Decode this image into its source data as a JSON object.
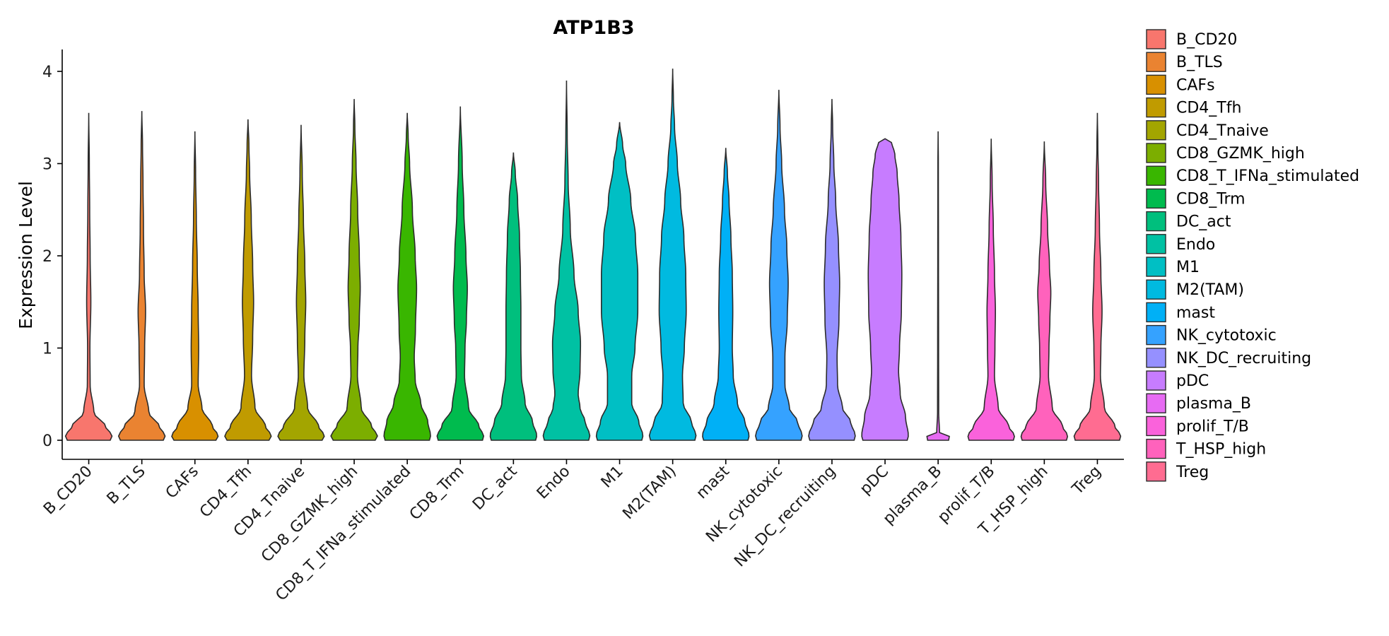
{
  "chart_data": {
    "type": "violin",
    "title": "ATP1B3",
    "xlabel": "",
    "ylabel": "Expression Level",
    "ylim": [
      0,
      4.2
    ],
    "yticks": [
      0,
      1,
      2,
      3,
      4
    ],
    "legend_position": "right",
    "categories": [
      "B_CD20",
      "B_TLS",
      "CAFs",
      "CD4_Tfh",
      "CD4_Tnaive",
      "CD8_GZMK_high",
      "CD8_T_IFNa_stimulated",
      "CD8_Trm",
      "DC_act",
      "Endo",
      "M1",
      "M2(TAM)",
      "mast",
      "NK_cytotoxic",
      "NK_DC_recruiting",
      "pDC",
      "plasma_B",
      "prolif_T/B",
      "T_HSP_high",
      "Treg"
    ],
    "colors": [
      "#F8766D",
      "#EA8331",
      "#D89000",
      "#C09B00",
      "#A3A500",
      "#7CAE00",
      "#39B600",
      "#00BB4E",
      "#00BF7D",
      "#00C1A3",
      "#00BFC4",
      "#00BAE0",
      "#00B0F6",
      "#35A2FF",
      "#9590FF",
      "#C77CFF",
      "#E76BF3",
      "#FA62DB",
      "#FF62BC",
      "#FF6C91"
    ],
    "series": [
      {
        "name": "B_CD20",
        "max": 3.55,
        "profile": [
          [
            0,
            0.92
          ],
          [
            0.05,
            1
          ],
          [
            0.15,
            0.72
          ],
          [
            0.3,
            0.22
          ],
          [
            0.6,
            0.06
          ],
          [
            1.0,
            0.05
          ],
          [
            1.5,
            0.09
          ],
          [
            2.0,
            0.06
          ],
          [
            2.5,
            0.04
          ],
          [
            3.0,
            0.025
          ],
          [
            3.55,
            0
          ]
        ]
      },
      {
        "name": "B_TLS",
        "max": 3.57,
        "profile": [
          [
            0,
            0.92
          ],
          [
            0.05,
            1
          ],
          [
            0.15,
            0.75
          ],
          [
            0.3,
            0.3
          ],
          [
            0.6,
            0.1
          ],
          [
            1.0,
            0.12
          ],
          [
            1.4,
            0.16
          ],
          [
            1.8,
            0.1
          ],
          [
            2.3,
            0.07
          ],
          [
            2.8,
            0.05
          ],
          [
            3.2,
            0.03
          ],
          [
            3.57,
            0
          ]
        ]
      },
      {
        "name": "CAFs",
        "max": 3.35,
        "profile": [
          [
            0,
            0.9
          ],
          [
            0.05,
            1
          ],
          [
            0.15,
            0.75
          ],
          [
            0.35,
            0.3
          ],
          [
            0.6,
            0.14
          ],
          [
            1.0,
            0.16
          ],
          [
            1.4,
            0.14
          ],
          [
            1.9,
            0.1
          ],
          [
            2.4,
            0.06
          ],
          [
            2.9,
            0.03
          ],
          [
            3.35,
            0
          ]
        ]
      },
      {
        "name": "CD4_Tfh",
        "max": 3.48,
        "profile": [
          [
            0,
            0.9
          ],
          [
            0.05,
            1
          ],
          [
            0.15,
            0.75
          ],
          [
            0.35,
            0.3
          ],
          [
            0.7,
            0.15
          ],
          [
            1.1,
            0.2
          ],
          [
            1.5,
            0.24
          ],
          [
            1.9,
            0.2
          ],
          [
            2.4,
            0.14
          ],
          [
            2.9,
            0.07
          ],
          [
            3.2,
            0.04
          ],
          [
            3.48,
            0
          ]
        ]
      },
      {
        "name": "CD4_Tnaive",
        "max": 3.42,
        "profile": [
          [
            0,
            0.9
          ],
          [
            0.05,
            1
          ],
          [
            0.15,
            0.75
          ],
          [
            0.35,
            0.28
          ],
          [
            0.7,
            0.12
          ],
          [
            1.1,
            0.16
          ],
          [
            1.5,
            0.2
          ],
          [
            1.9,
            0.16
          ],
          [
            2.4,
            0.1
          ],
          [
            2.9,
            0.05
          ],
          [
            3.42,
            0
          ]
        ]
      },
      {
        "name": "CD8_GZMK_high",
        "max": 3.7,
        "profile": [
          [
            0,
            0.9
          ],
          [
            0.05,
            1
          ],
          [
            0.15,
            0.75
          ],
          [
            0.35,
            0.3
          ],
          [
            0.7,
            0.14
          ],
          [
            1.0,
            0.16
          ],
          [
            1.3,
            0.22
          ],
          [
            1.65,
            0.26
          ],
          [
            2.0,
            0.22
          ],
          [
            2.5,
            0.15
          ],
          [
            3.0,
            0.08
          ],
          [
            3.4,
            0.03
          ],
          [
            3.7,
            0
          ]
        ]
      },
      {
        "name": "CD8_T_IFNa_stimulated",
        "max": 3.55,
        "profile": [
          [
            0,
            0.95
          ],
          [
            0.05,
            1
          ],
          [
            0.2,
            0.88
          ],
          [
            0.4,
            0.58
          ],
          [
            0.65,
            0.34
          ],
          [
            0.9,
            0.3
          ],
          [
            1.2,
            0.35
          ],
          [
            1.65,
            0.4
          ],
          [
            2.0,
            0.34
          ],
          [
            2.5,
            0.22
          ],
          [
            3.0,
            0.1
          ],
          [
            3.3,
            0.04
          ],
          [
            3.55,
            0
          ]
        ]
      },
      {
        "name": "CD8_Trm",
        "max": 3.62,
        "profile": [
          [
            0,
            0.95
          ],
          [
            0.05,
            1
          ],
          [
            0.15,
            0.8
          ],
          [
            0.35,
            0.35
          ],
          [
            0.7,
            0.18
          ],
          [
            1.0,
            0.2
          ],
          [
            1.3,
            0.26
          ],
          [
            1.65,
            0.3
          ],
          [
            2.0,
            0.24
          ],
          [
            2.5,
            0.15
          ],
          [
            3.0,
            0.08
          ],
          [
            3.62,
            0
          ]
        ]
      },
      {
        "name": "DC_act",
        "max": 3.12,
        "profile": [
          [
            0,
            0.95
          ],
          [
            0.05,
            1
          ],
          [
            0.2,
            0.82
          ],
          [
            0.4,
            0.5
          ],
          [
            0.7,
            0.34
          ],
          [
            1.0,
            0.32
          ],
          [
            1.4,
            0.32
          ],
          [
            1.8,
            0.3
          ],
          [
            2.2,
            0.26
          ],
          [
            2.6,
            0.18
          ],
          [
            2.9,
            0.08
          ],
          [
            3.12,
            0
          ]
        ]
      },
      {
        "name": "Endo",
        "max": 3.9,
        "profile": [
          [
            0,
            0.95
          ],
          [
            0.05,
            1
          ],
          [
            0.2,
            0.8
          ],
          [
            0.35,
            0.58
          ],
          [
            0.5,
            0.5
          ],
          [
            0.75,
            0.58
          ],
          [
            1.05,
            0.6
          ],
          [
            1.4,
            0.5
          ],
          [
            1.8,
            0.32
          ],
          [
            2.3,
            0.16
          ],
          [
            2.8,
            0.07
          ],
          [
            3.3,
            0.03
          ],
          [
            3.9,
            0
          ]
        ]
      },
      {
        "name": "M1",
        "max": 3.45,
        "profile": [
          [
            0,
            0.95
          ],
          [
            0.05,
            1
          ],
          [
            0.2,
            0.82
          ],
          [
            0.4,
            0.52
          ],
          [
            0.7,
            0.52
          ],
          [
            1.0,
            0.66
          ],
          [
            1.4,
            0.78
          ],
          [
            1.8,
            0.78
          ],
          [
            2.2,
            0.68
          ],
          [
            2.6,
            0.48
          ],
          [
            3.0,
            0.26
          ],
          [
            3.2,
            0.13
          ],
          [
            3.45,
            0
          ]
        ]
      },
      {
        "name": "M2(TAM)",
        "max": 4.03,
        "profile": [
          [
            0,
            0.95
          ],
          [
            0.05,
            1
          ],
          [
            0.2,
            0.8
          ],
          [
            0.4,
            0.45
          ],
          [
            0.7,
            0.42
          ],
          [
            1.0,
            0.5
          ],
          [
            1.4,
            0.58
          ],
          [
            1.8,
            0.56
          ],
          [
            2.2,
            0.48
          ],
          [
            2.6,
            0.34
          ],
          [
            3.0,
            0.2
          ],
          [
            3.4,
            0.08
          ],
          [
            3.7,
            0.03
          ],
          [
            4.03,
            0
          ]
        ]
      },
      {
        "name": "mast",
        "max": 3.17,
        "profile": [
          [
            0,
            0.95
          ],
          [
            0.05,
            1
          ],
          [
            0.2,
            0.82
          ],
          [
            0.4,
            0.5
          ],
          [
            0.7,
            0.32
          ],
          [
            1.0,
            0.28
          ],
          [
            1.4,
            0.3
          ],
          [
            1.8,
            0.28
          ],
          [
            2.2,
            0.22
          ],
          [
            2.6,
            0.14
          ],
          [
            2.9,
            0.07
          ],
          [
            3.17,
            0
          ]
        ]
      },
      {
        "name": "NK_cytotoxic",
        "max": 3.8,
        "profile": [
          [
            0,
            0.95
          ],
          [
            0.05,
            1
          ],
          [
            0.2,
            0.8
          ],
          [
            0.35,
            0.45
          ],
          [
            0.6,
            0.26
          ],
          [
            0.9,
            0.26
          ],
          [
            1.3,
            0.36
          ],
          [
            1.7,
            0.4
          ],
          [
            2.1,
            0.34
          ],
          [
            2.5,
            0.24
          ],
          [
            3.0,
            0.12
          ],
          [
            3.4,
            0.05
          ],
          [
            3.8,
            0
          ]
        ]
      },
      {
        "name": "NK_DC_recruiting",
        "max": 3.7,
        "profile": [
          [
            0,
            0.95
          ],
          [
            0.05,
            1
          ],
          [
            0.2,
            0.8
          ],
          [
            0.35,
            0.45
          ],
          [
            0.6,
            0.24
          ],
          [
            0.9,
            0.22
          ],
          [
            1.3,
            0.3
          ],
          [
            1.7,
            0.33
          ],
          [
            2.1,
            0.28
          ],
          [
            2.6,
            0.16
          ],
          [
            3.0,
            0.08
          ],
          [
            3.4,
            0.03
          ],
          [
            3.7,
            0
          ]
        ]
      },
      {
        "name": "pDC",
        "max": 3.27,
        "profile": [
          [
            0,
            0.95
          ],
          [
            0.05,
            1
          ],
          [
            0.25,
            0.88
          ],
          [
            0.5,
            0.65
          ],
          [
            0.75,
            0.58
          ],
          [
            1.0,
            0.62
          ],
          [
            1.4,
            0.7
          ],
          [
            1.8,
            0.72
          ],
          [
            2.2,
            0.68
          ],
          [
            2.6,
            0.6
          ],
          [
            2.9,
            0.52
          ],
          [
            3.1,
            0.42
          ],
          [
            3.22,
            0.3
          ],
          [
            3.27,
            0
          ]
        ]
      },
      {
        "name": "plasma_B",
        "max": 3.35,
        "profile": [
          [
            0,
            0.45
          ],
          [
            0.03,
            0.55
          ],
          [
            0.08,
            0.06
          ],
          [
            0.3,
            0.025
          ],
          [
            1.0,
            0.02
          ],
          [
            2.0,
            0.015
          ],
          [
            3.0,
            0.01
          ],
          [
            3.35,
            0
          ]
        ]
      },
      {
        "name": "prolif_T/B",
        "max": 3.27,
        "profile": [
          [
            0,
            0.95
          ],
          [
            0.05,
            1
          ],
          [
            0.15,
            0.75
          ],
          [
            0.35,
            0.3
          ],
          [
            0.7,
            0.14
          ],
          [
            1.0,
            0.16
          ],
          [
            1.4,
            0.18
          ],
          [
            1.8,
            0.14
          ],
          [
            2.3,
            0.09
          ],
          [
            2.8,
            0.04
          ],
          [
            3.27,
            0
          ]
        ]
      },
      {
        "name": "T_HSP_high",
        "max": 3.24,
        "profile": [
          [
            0,
            0.95
          ],
          [
            0.05,
            1
          ],
          [
            0.15,
            0.78
          ],
          [
            0.35,
            0.34
          ],
          [
            0.7,
            0.18
          ],
          [
            1.0,
            0.2
          ],
          [
            1.3,
            0.24
          ],
          [
            1.6,
            0.28
          ],
          [
            1.9,
            0.22
          ],
          [
            2.3,
            0.14
          ],
          [
            2.8,
            0.06
          ],
          [
            3.24,
            0
          ]
        ]
      },
      {
        "name": "Treg",
        "max": 3.55,
        "profile": [
          [
            0,
            0.95
          ],
          [
            0.05,
            1
          ],
          [
            0.15,
            0.75
          ],
          [
            0.35,
            0.3
          ],
          [
            0.7,
            0.13
          ],
          [
            1.0,
            0.15
          ],
          [
            1.4,
            0.2
          ],
          [
            1.8,
            0.15
          ],
          [
            2.3,
            0.09
          ],
          [
            2.8,
            0.05
          ],
          [
            3.2,
            0.02
          ],
          [
            3.55,
            0
          ]
        ]
      }
    ]
  }
}
